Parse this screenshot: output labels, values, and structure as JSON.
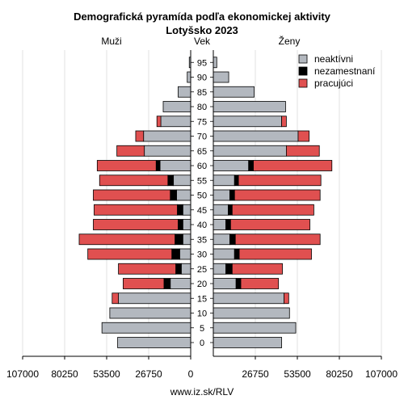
{
  "chart_data": {
    "type": "bar",
    "title": "Demografická pyramída podľa ekonomickej aktivity",
    "subtitle": "Lotyšsko 2023",
    "left_label": "Muži",
    "center_label": "Vek",
    "right_label": "Ženy",
    "footer": "www.iz.sk/RLV",
    "ages": [
      "0",
      "5",
      "10",
      "15",
      "20",
      "25",
      "30",
      "35",
      "40",
      "45",
      "50",
      "55",
      "60",
      "65",
      "70",
      "75",
      "80",
      "85",
      "90",
      "95"
    ],
    "x_ticks_left": [
      "107000",
      "80250",
      "53500",
      "26750",
      "0"
    ],
    "x_ticks_right": [
      "26750",
      "53500",
      "80250",
      "107000"
    ],
    "xlim": [
      0,
      107000
    ],
    "legend_position": "top-right",
    "series": [
      {
        "name": "neaktívni",
        "color": "#b3b8bf",
        "male": [
          46500,
          56500,
          51500,
          46000,
          13000,
          6000,
          7000,
          5000,
          5000,
          5000,
          9000,
          11000,
          19500,
          29500,
          30000,
          19000,
          17500,
          8000,
          2200,
          900
        ],
        "female": [
          43500,
          52500,
          48500,
          45000,
          14500,
          8000,
          13500,
          10500,
          8000,
          9500,
          10500,
          13500,
          22500,
          46500,
          54000,
          43500,
          46000,
          26000,
          9800,
          2200
        ]
      },
      {
        "name": "nezamestnaní",
        "color": "#000000",
        "male": [
          0,
          0,
          0,
          0,
          4000,
          3500,
          5000,
          5000,
          3000,
          3500,
          4000,
          3500,
          2500,
          0,
          0,
          0,
          0,
          0,
          0,
          0
        ],
        "female": [
          0,
          0,
          0,
          0,
          3000,
          4000,
          3000,
          3500,
          3000,
          2500,
          3000,
          2500,
          3000,
          0,
          0,
          0,
          0,
          0,
          0,
          0
        ]
      },
      {
        "name": "pracujúci",
        "color": "#e05050",
        "male": [
          0,
          0,
          0,
          4000,
          26000,
          36500,
          53500,
          61000,
          54000,
          53000,
          49000,
          43500,
          37500,
          17500,
          5000,
          2500,
          0,
          0,
          0,
          0
        ],
        "female": [
          0,
          0,
          0,
          3000,
          24000,
          32000,
          46000,
          54000,
          50500,
          52000,
          54500,
          52500,
          50000,
          21000,
          7000,
          3000,
          0,
          0,
          0,
          0
        ]
      }
    ]
  }
}
